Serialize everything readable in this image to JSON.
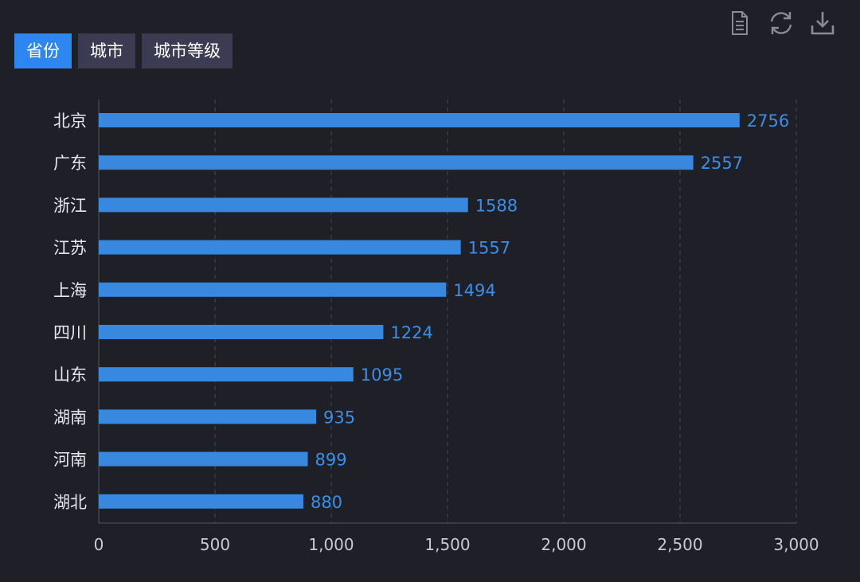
{
  "tabs": [
    {
      "label": "省份",
      "active": true
    },
    {
      "label": "城市",
      "active": false
    },
    {
      "label": "城市等级",
      "active": false
    }
  ],
  "toolbox": [
    {
      "icon": "data-view-icon"
    },
    {
      "icon": "refresh-icon"
    },
    {
      "icon": "download-icon"
    }
  ],
  "colors": {
    "background": "#1f2027",
    "bar": "#3888e0",
    "label": "#3a8ee6",
    "tab_active": "#2e86f0",
    "tab_inactive": "#3b3c52"
  },
  "chart_data": {
    "type": "bar",
    "orientation": "horizontal",
    "categories": [
      "北京",
      "广东",
      "浙江",
      "江苏",
      "上海",
      "四川",
      "山东",
      "湖南",
      "河南",
      "湖北"
    ],
    "values": [
      2756,
      2557,
      1588,
      1557,
      1494,
      1224,
      1095,
      935,
      899,
      880
    ],
    "xlim": [
      0,
      3000
    ],
    "xticks": [
      0,
      500,
      1000,
      1500,
      2000,
      2500,
      3000
    ],
    "xtick_labels": [
      "0",
      "500",
      "1,000",
      "1,500",
      "2,000",
      "2,500",
      "3,000"
    ],
    "title": "",
    "xlabel": "",
    "ylabel": "",
    "grid": true,
    "grid_style": "dashed-vertical",
    "data_labels": true
  }
}
